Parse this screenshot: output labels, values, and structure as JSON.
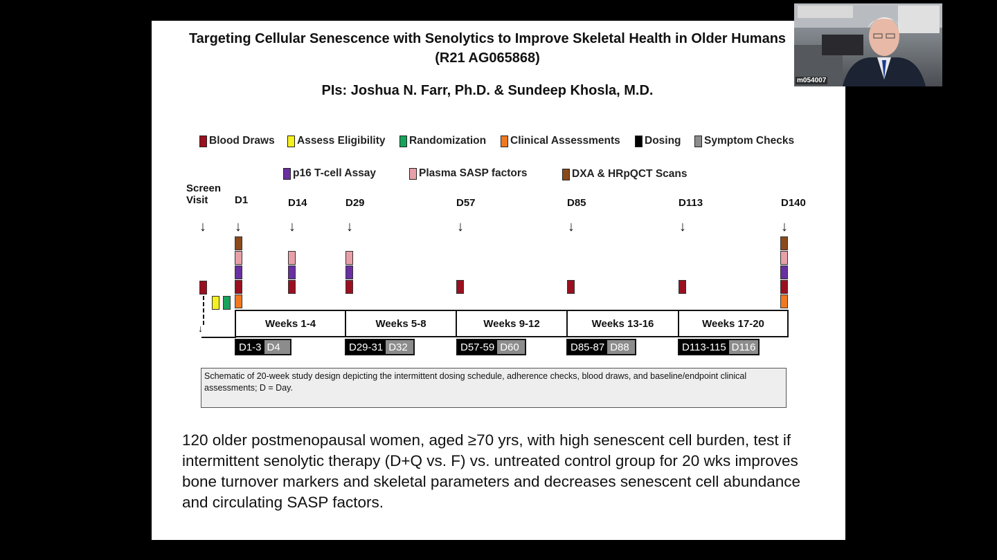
{
  "slide": {
    "title": "Targeting Cellular Senescence with Senolytics to Improve Skeletal Health in Older Humans (R21 AG065868)",
    "pis": "PIs: Joshua N. Farr, Ph.D. & Sundeep Khosla, M.D.",
    "caption": "Schematic of 20-week study design depicting the intermittent dosing schedule, adherence checks, blood draws, and baseline/endpoint clinical assessments; D = Day.",
    "body": "120 older postmenopausal women, aged ≥70 yrs, with high senescent cell burden, test if intermittent senolytic therapy (D+Q vs. F) vs. untreated control group for 20 wks improves bone turnover markers and skeletal parameters and decreases senescent cell abundance and circulating SASP factors."
  },
  "legend": [
    {
      "label": "Blood Draws",
      "color": "#9b1020"
    },
    {
      "label": "Assess Eligibility",
      "color": "#f5f020"
    },
    {
      "label": "Randomization",
      "color": "#17a35a"
    },
    {
      "label": "Clinical Assessments",
      "color": "#f07820"
    },
    {
      "label": "Dosing",
      "color": "#000000"
    },
    {
      "label": "Symptom Checks",
      "color": "#8c8c8c"
    },
    {
      "label": "p16 T-cell Assay",
      "color": "#6a2fa0"
    },
    {
      "label": "Plasma SASP factors",
      "color": "#e8a0a8"
    },
    {
      "label": "DXA & HRpQCT Scans",
      "color": "#8b4a1a"
    }
  ],
  "timeline": {
    "screen_label_1": "Screen",
    "screen_label_2": "Visit",
    "days": [
      "D1",
      "D14",
      "D29",
      "D57",
      "D85",
      "D113",
      "D140"
    ],
    "weeks": [
      "Weeks 1-4",
      "Weeks 5-8",
      "Weeks 9-12",
      "Weeks 13-16",
      "Weeks 17-20"
    ],
    "dosing": [
      {
        "dose": "D1-3",
        "check": "D4"
      },
      {
        "dose": "D29-31",
        "check": "D32"
      },
      {
        "dose": "D57-59",
        "check": "D60"
      },
      {
        "dose": "D85-87",
        "check": "D88"
      },
      {
        "dose": "D113-115",
        "check": "D116"
      }
    ],
    "arrow_glyph": "↓"
  },
  "webcam": {
    "label": "m054007"
  }
}
